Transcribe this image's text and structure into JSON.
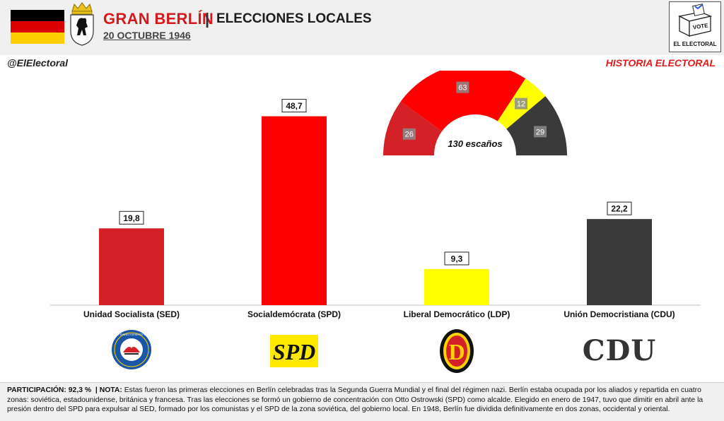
{
  "header": {
    "title": "GRAN BERLÍN",
    "separator": "|",
    "subtitle": "ELECCIONES LOCALES",
    "date": "20 OCTUBRE 1946",
    "logo_label": "EL ELECTORAL",
    "logo_ballot": "VOTE"
  },
  "handle": "@ElElectoral",
  "series_tag": "HISTORIA ELECTORAL",
  "colors": {
    "flag": [
      "#000000",
      "#dd0000",
      "#ffce00"
    ],
    "SED": "#d42027",
    "SPD": "#ff0000",
    "LDP": "#ffff00",
    "CDU": "#3a3a3a"
  },
  "chart_data": {
    "type": "bar",
    "categories": [
      "Unidad Socialista (SED)",
      "Socialdemócrata (SPD)",
      "Liberal Democrático (LDP)",
      "Unión Democristiana (CDU)"
    ],
    "values": [
      19.8,
      48.7,
      9.3,
      22.2
    ],
    "value_labels": [
      "19,8",
      "48,7",
      "9,3",
      "22,2"
    ],
    "colors": [
      "#d42027",
      "#ff0000",
      "#ffff00",
      "#3a3a3a"
    ],
    "ylim": [
      0,
      55
    ],
    "grid": false,
    "seats": {
      "type": "pie",
      "label": "130 escaños",
      "slices": [
        {
          "party": "SED",
          "value": 26,
          "label": "26",
          "color": "#d42027"
        },
        {
          "party": "SPD",
          "value": 63,
          "label": "63",
          "color": "#ff0000"
        },
        {
          "party": "LDP",
          "value": 12,
          "label": "12",
          "color": "#ffff00"
        },
        {
          "party": "CDU",
          "value": 29,
          "label": "29",
          "color": "#3a3a3a"
        }
      ]
    },
    "party_logos": [
      "SED-logo",
      "SPD-logo",
      "LDP-logo",
      "CDU-logo"
    ]
  },
  "footer": {
    "participation_label": "PARTICIPACIÓN:",
    "participation_value": "92,3 %",
    "nota_label": "NOTA:",
    "nota_text": "Estas fueron las primeras elecciones en Berlín celebradas tras la Segunda Guerra Mundial y el final del régimen nazi. Berlín estaba ocupada por los aliados y repartida en cuatro zonas: soviética, estadounidense, británica y francesa. Tras las elecciones se formó un gobierno de concentración con Otto Ostrowski (SPD) como alcalde. Elegido en enero de 1947, tuvo que dimitir en abril ante la presión dentro del SPD para expulsar al SED, formado por los comunistas y el SPD de la zona soviética, del gobierno local. En 1948, Berlín fue dividida definitivamente en dos zonas, occidental y oriental."
  },
  "logos": {
    "sed_text": "SOZIALISTISCHE EINHEITSPARTEI DEUTSCHLANDS",
    "spd_text": "SPD",
    "ldp_text": "D",
    "cdu_text": "CDU"
  }
}
